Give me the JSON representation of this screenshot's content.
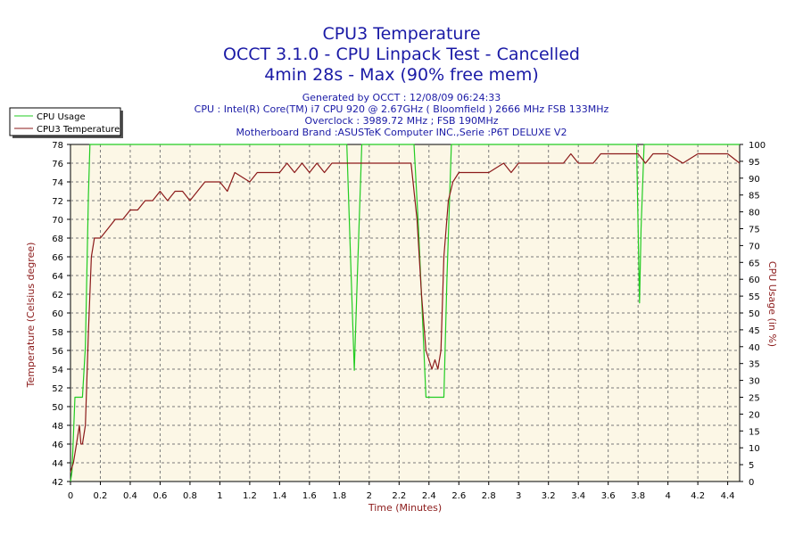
{
  "header": {
    "title_line1": "CPU3 Temperature",
    "title_line2": "OCCT 3.1.0 - CPU Linpack Test - Cancelled",
    "title_line3": "4min 28s - Max (90% free mem)",
    "info_generated": "Generated by OCCT : 12/08/09 06:24:33",
    "info_cpu": "CPU : Intel(R) Core(TM) i7 CPU 920 @ 2.67GHz ( Bloomfield ) 2666 MHz FSB 133MHz",
    "info_overclock": "Overclock : 3989.72 MHz ; FSB 190MHz",
    "info_motherboard": "Motherboard Brand :ASUSTeK Computer INC.,Serie :P6T DELUXE V2"
  },
  "chart_data": {
    "type": "line",
    "xlabel": "Time (Minutes)",
    "ylabel": "Temperature (Celsius degree)",
    "y2label": "CPU Usage (in %)",
    "xlim": [
      0,
      4.48
    ],
    "ylim": [
      42,
      78
    ],
    "y2lim": [
      0,
      100
    ],
    "x_ticks": [
      "0",
      "0.2",
      "0.4",
      "0.6",
      "0.8",
      "1",
      "1.2",
      "1.4",
      "1.6",
      "1.8",
      "2",
      "2.2",
      "2.4",
      "2.6",
      "2.8",
      "3",
      "3.2",
      "3.4",
      "3.6",
      "3.8",
      "4",
      "4.2",
      "4.4"
    ],
    "y_ticks": [
      "42",
      "44",
      "46",
      "48",
      "50",
      "52",
      "54",
      "56",
      "58",
      "60",
      "62",
      "64",
      "66",
      "68",
      "70",
      "72",
      "74",
      "76",
      "78"
    ],
    "y2_ticks": [
      "0",
      "5",
      "10",
      "15",
      "20",
      "25",
      "30",
      "35",
      "40",
      "45",
      "50",
      "55",
      "60",
      "65",
      "70",
      "75",
      "80",
      "85",
      "90",
      "95",
      "100"
    ],
    "grid": true,
    "legend_position": "top-left",
    "series": [
      {
        "name": "CPU Usage",
        "axis": "right",
        "color": "#22cc22",
        "x": [
          0,
          0.01,
          0.03,
          0.05,
          0.08,
          0.1,
          0.12,
          0.13,
          0.15,
          0.2,
          1.85,
          1.88,
          1.9,
          1.92,
          1.95,
          2.0,
          2.2,
          2.3,
          2.33,
          2.36,
          2.38,
          2.4,
          2.45,
          2.5,
          2.52,
          2.55,
          2.6,
          3.0,
          3.79,
          3.8,
          3.81,
          3.82,
          3.84,
          4.0,
          4.48
        ],
        "y": [
          0,
          3,
          25,
          25,
          25,
          40,
          85,
          100,
          100,
          100,
          100,
          60,
          33,
          60,
          100,
          100,
          100,
          100,
          75,
          45,
          25,
          25,
          25,
          25,
          60,
          100,
          100,
          100,
          100,
          75,
          53,
          75,
          100,
          100,
          100
        ]
      },
      {
        "name": "CPU3 Temperature",
        "axis": "left",
        "color": "#8b1a1a",
        "x": [
          0,
          0.02,
          0.04,
          0.06,
          0.07,
          0.08,
          0.1,
          0.12,
          0.14,
          0.16,
          0.2,
          0.25,
          0.3,
          0.35,
          0.4,
          0.45,
          0.5,
          0.55,
          0.6,
          0.65,
          0.7,
          0.75,
          0.8,
          0.85,
          0.9,
          1.0,
          1.05,
          1.1,
          1.2,
          1.25,
          1.3,
          1.4,
          1.45,
          1.5,
          1.55,
          1.6,
          1.65,
          1.7,
          1.75,
          1.8,
          1.9,
          2.0,
          2.1,
          2.2,
          2.28,
          2.32,
          2.35,
          2.38,
          2.42,
          2.44,
          2.46,
          2.48,
          2.5,
          2.53,
          2.56,
          2.6,
          2.7,
          2.8,
          2.9,
          2.95,
          3.0,
          3.1,
          3.2,
          3.3,
          3.35,
          3.4,
          3.5,
          3.55,
          3.6,
          3.7,
          3.8,
          3.85,
          3.9,
          4.0,
          4.1,
          4.2,
          4.3,
          4.4,
          4.48
        ],
        "y": [
          43,
          44,
          46,
          48,
          46,
          46,
          48,
          58,
          66,
          68,
          68,
          69,
          70,
          70,
          71,
          71,
          72,
          72,
          73,
          72,
          73,
          73,
          72,
          73,
          74,
          74,
          73,
          75,
          74,
          75,
          75,
          75,
          76,
          75,
          76,
          75,
          76,
          75,
          76,
          76,
          76,
          76,
          76,
          76,
          76,
          70,
          62,
          56,
          54,
          55,
          54,
          56,
          66,
          72,
          74,
          75,
          75,
          75,
          76,
          75,
          76,
          76,
          76,
          76,
          77,
          76,
          76,
          77,
          77,
          77,
          77,
          76,
          77,
          77,
          76,
          77,
          77,
          77,
          76
        ]
      }
    ]
  }
}
